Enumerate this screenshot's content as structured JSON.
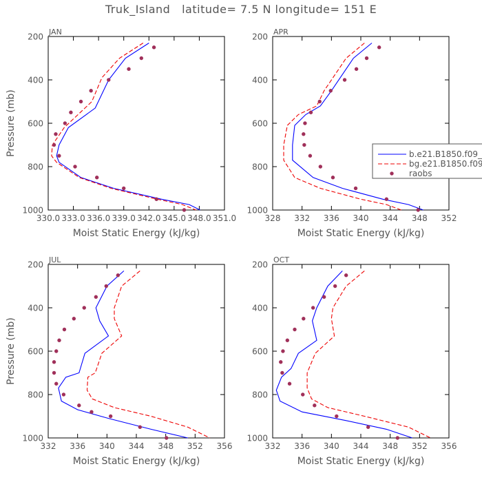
{
  "figure": {
    "title": "Truk_Island   latitude= 7.5 N longitude= 151 E"
  },
  "colors": {
    "series_1": "#0000ff",
    "series_2": "#ee0000",
    "raobs": "#a0305a",
    "axes": "#000000",
    "text": "#555555"
  },
  "legend": {
    "entries": [
      "b.e21.B1850.f09_",
      "bg.e21.B1850.f09",
      "raobs"
    ]
  },
  "chart_data": [
    {
      "type": "line",
      "panel_label": "JAN",
      "xlabel": "Moist Static Energy (kJ/kg)",
      "ylabel": "Pressure (mb)",
      "xlim": [
        330.0,
        351.0
      ],
      "ylim": [
        1000,
        200
      ],
      "x_ticks": [
        "330.0",
        "333.0",
        "336.0",
        "339.0",
        "342.0",
        "345.0",
        "348.0",
        "351.0"
      ],
      "x_tick_values": [
        330,
        333,
        336,
        339,
        342,
        345,
        348,
        351
      ],
      "y_ticks": [
        200,
        400,
        600,
        800,
        1000
      ],
      "series": [
        {
          "name": "b.e21.B1850.f09_",
          "style": "solid",
          "x": [
            342.0,
            339.2,
            337.2,
            335.6,
            332.4,
            331.3,
            331.0,
            331.3,
            333.9,
            337.8,
            343.5,
            346.8,
            348.1
          ],
          "y": [
            230,
            300,
            400,
            530,
            620,
            700,
            750,
            780,
            850,
            900,
            950,
            975,
            1000
          ]
        },
        {
          "name": "bg.e21.B1850.f09",
          "style": "dashed",
          "x": [
            341.3,
            338.5,
            336.4,
            335.2,
            331.9,
            330.5,
            330.4,
            331.0,
            333.7,
            337.5,
            343.0,
            346.0,
            347.6
          ],
          "y": [
            230,
            300,
            390,
            500,
            620,
            700,
            750,
            780,
            850,
            900,
            950,
            975,
            1000
          ]
        }
      ],
      "raobs": {
        "x": [
          342.6,
          341.1,
          339.6,
          337.2,
          335.1,
          333.9,
          332.7,
          332.0,
          330.9,
          330.7,
          331.3,
          333.2,
          335.8,
          339.0,
          342.9,
          346.2
        ],
        "y": [
          250,
          300,
          350,
          400,
          450,
          500,
          550,
          600,
          650,
          700,
          750,
          800,
          850,
          900,
          950,
          1000
        ]
      }
    },
    {
      "type": "line",
      "panel_label": "APR",
      "xlabel": "Moist Static Energy (kJ/kg)",
      "ylabel": "",
      "xlim": [
        328,
        352
      ],
      "ylim": [
        1000,
        200
      ],
      "x_ticks": [
        "328",
        "332",
        "336",
        "340",
        "344",
        "348",
        "352"
      ],
      "x_tick_values": [
        328,
        332,
        336,
        340,
        344,
        348,
        352
      ],
      "y_ticks": [
        200,
        400,
        600,
        800,
        1000
      ],
      "series": [
        {
          "name": "b.e21.B1850.f09_",
          "style": "solid",
          "x": [
            341.5,
            339.0,
            336.0,
            334.5,
            332.5,
            331.0,
            330.7,
            330.7,
            333.5,
            337.5,
            343.0,
            346.5,
            348.5
          ],
          "y": [
            230,
            300,
            450,
            520,
            560,
            610,
            700,
            770,
            850,
            900,
            950,
            975,
            1000
          ]
        },
        {
          "name": "bg.e21.B1850.f09",
          "style": "dashed",
          "x": [
            340.5,
            338.0,
            335.0,
            334.0,
            331.5,
            330.0,
            329.5,
            329.5,
            331.0,
            334.5,
            340.0,
            343.5,
            345.5
          ],
          "y": [
            230,
            300,
            450,
            520,
            560,
            610,
            700,
            770,
            850,
            900,
            950,
            975,
            1000
          ]
        }
      ],
      "raobs": {
        "x": [
          342.5,
          340.8,
          339.4,
          337.8,
          335.9,
          334.4,
          333.2,
          332.4,
          332.2,
          332.3,
          333.1,
          334.5,
          336.2,
          339.3,
          343.5,
          347.8
        ],
        "y": [
          250,
          300,
          350,
          400,
          450,
          500,
          550,
          600,
          650,
          700,
          750,
          800,
          850,
          900,
          950,
          1000
        ]
      }
    },
    {
      "type": "line",
      "panel_label": "JUL",
      "xlabel": "Moist Static Energy (kJ/kg)",
      "ylabel": "Pressure (mb)",
      "xlim": [
        332,
        356
      ],
      "ylim": [
        1000,
        200
      ],
      "x_ticks": [
        "332",
        "336",
        "340",
        "344",
        "348",
        "352",
        "356"
      ],
      "x_tick_values": [
        332,
        336,
        340,
        344,
        348,
        352,
        356
      ],
      "y_ticks": [
        200,
        400,
        600,
        800,
        1000
      ],
      "series": [
        {
          "name": "b.e21.B1850.f09_",
          "style": "solid",
          "x": [
            342.3,
            340.0,
            338.5,
            339.0,
            340.2,
            337.0,
            336.2,
            334.4,
            333.4,
            333.8,
            336.0,
            340.2,
            346.0,
            351.0
          ],
          "y": [
            230,
            300,
            400,
            460,
            530,
            610,
            700,
            720,
            770,
            830,
            870,
            910,
            960,
            1000
          ]
        },
        {
          "name": "bg.e21.B1850.f09",
          "style": "dashed",
          "x": [
            344.5,
            342.0,
            341.0,
            341.0,
            342.0,
            339.3,
            338.4,
            337.4,
            337.3,
            338.0,
            341.0,
            346.0,
            351.0,
            354.0
          ],
          "y": [
            230,
            300,
            400,
            450,
            530,
            610,
            700,
            720,
            780,
            820,
            860,
            900,
            950,
            1000
          ]
        }
      ],
      "raobs": {
        "x": [
          341.5,
          339.9,
          338.5,
          336.9,
          335.5,
          334.2,
          333.5,
          333.1,
          332.8,
          332.8,
          333.1,
          334.1,
          336.2,
          337.9,
          340.5,
          344.5,
          348.1
        ],
        "y": [
          250,
          300,
          350,
          400,
          450,
          500,
          550,
          600,
          650,
          700,
          750,
          800,
          850,
          880,
          900,
          950,
          1000
        ]
      }
    },
    {
      "type": "line",
      "panel_label": "OCT",
      "xlabel": "Moist Static Energy (kJ/kg)",
      "ylabel": "",
      "xlim": [
        332,
        356
      ],
      "ylim": [
        1000,
        200
      ],
      "x_ticks": [
        "332",
        "336",
        "340",
        "344",
        "348",
        "352",
        "356"
      ],
      "x_tick_values": [
        332,
        336,
        340,
        344,
        348,
        352,
        356
      ],
      "y_ticks": [
        200,
        400,
        600,
        800,
        1000
      ],
      "series": [
        {
          "name": "b.e21.B1850.f09_",
          "style": "solid",
          "x": [
            341.5,
            339.5,
            338.0,
            337.4,
            338.0,
            335.5,
            334.5,
            333.2,
            332.5,
            333.0,
            336.0,
            342.0,
            347.5,
            351.0
          ],
          "y": [
            230,
            300,
            400,
            460,
            550,
            610,
            680,
            720,
            780,
            830,
            880,
            920,
            960,
            1000
          ]
        },
        {
          "name": "bg.e21.B1850.f09",
          "style": "dashed",
          "x": [
            344.5,
            342.0,
            340.2,
            340.0,
            340.4,
            337.8,
            336.7,
            336.7,
            337.3,
            339.5,
            344.5,
            350.5,
            353.5
          ],
          "y": [
            230,
            300,
            400,
            450,
            530,
            610,
            700,
            770,
            820,
            860,
            900,
            950,
            1000
          ]
        }
      ],
      "raobs": {
        "x": [
          342.0,
          340.5,
          339.0,
          337.5,
          336.2,
          335.0,
          334.0,
          333.4,
          333.1,
          333.3,
          334.3,
          336.1,
          337.7,
          340.7,
          345.0,
          349.0
        ],
        "y": [
          250,
          300,
          350,
          400,
          450,
          500,
          550,
          600,
          650,
          700,
          750,
          800,
          850,
          900,
          950,
          1000
        ]
      }
    }
  ]
}
